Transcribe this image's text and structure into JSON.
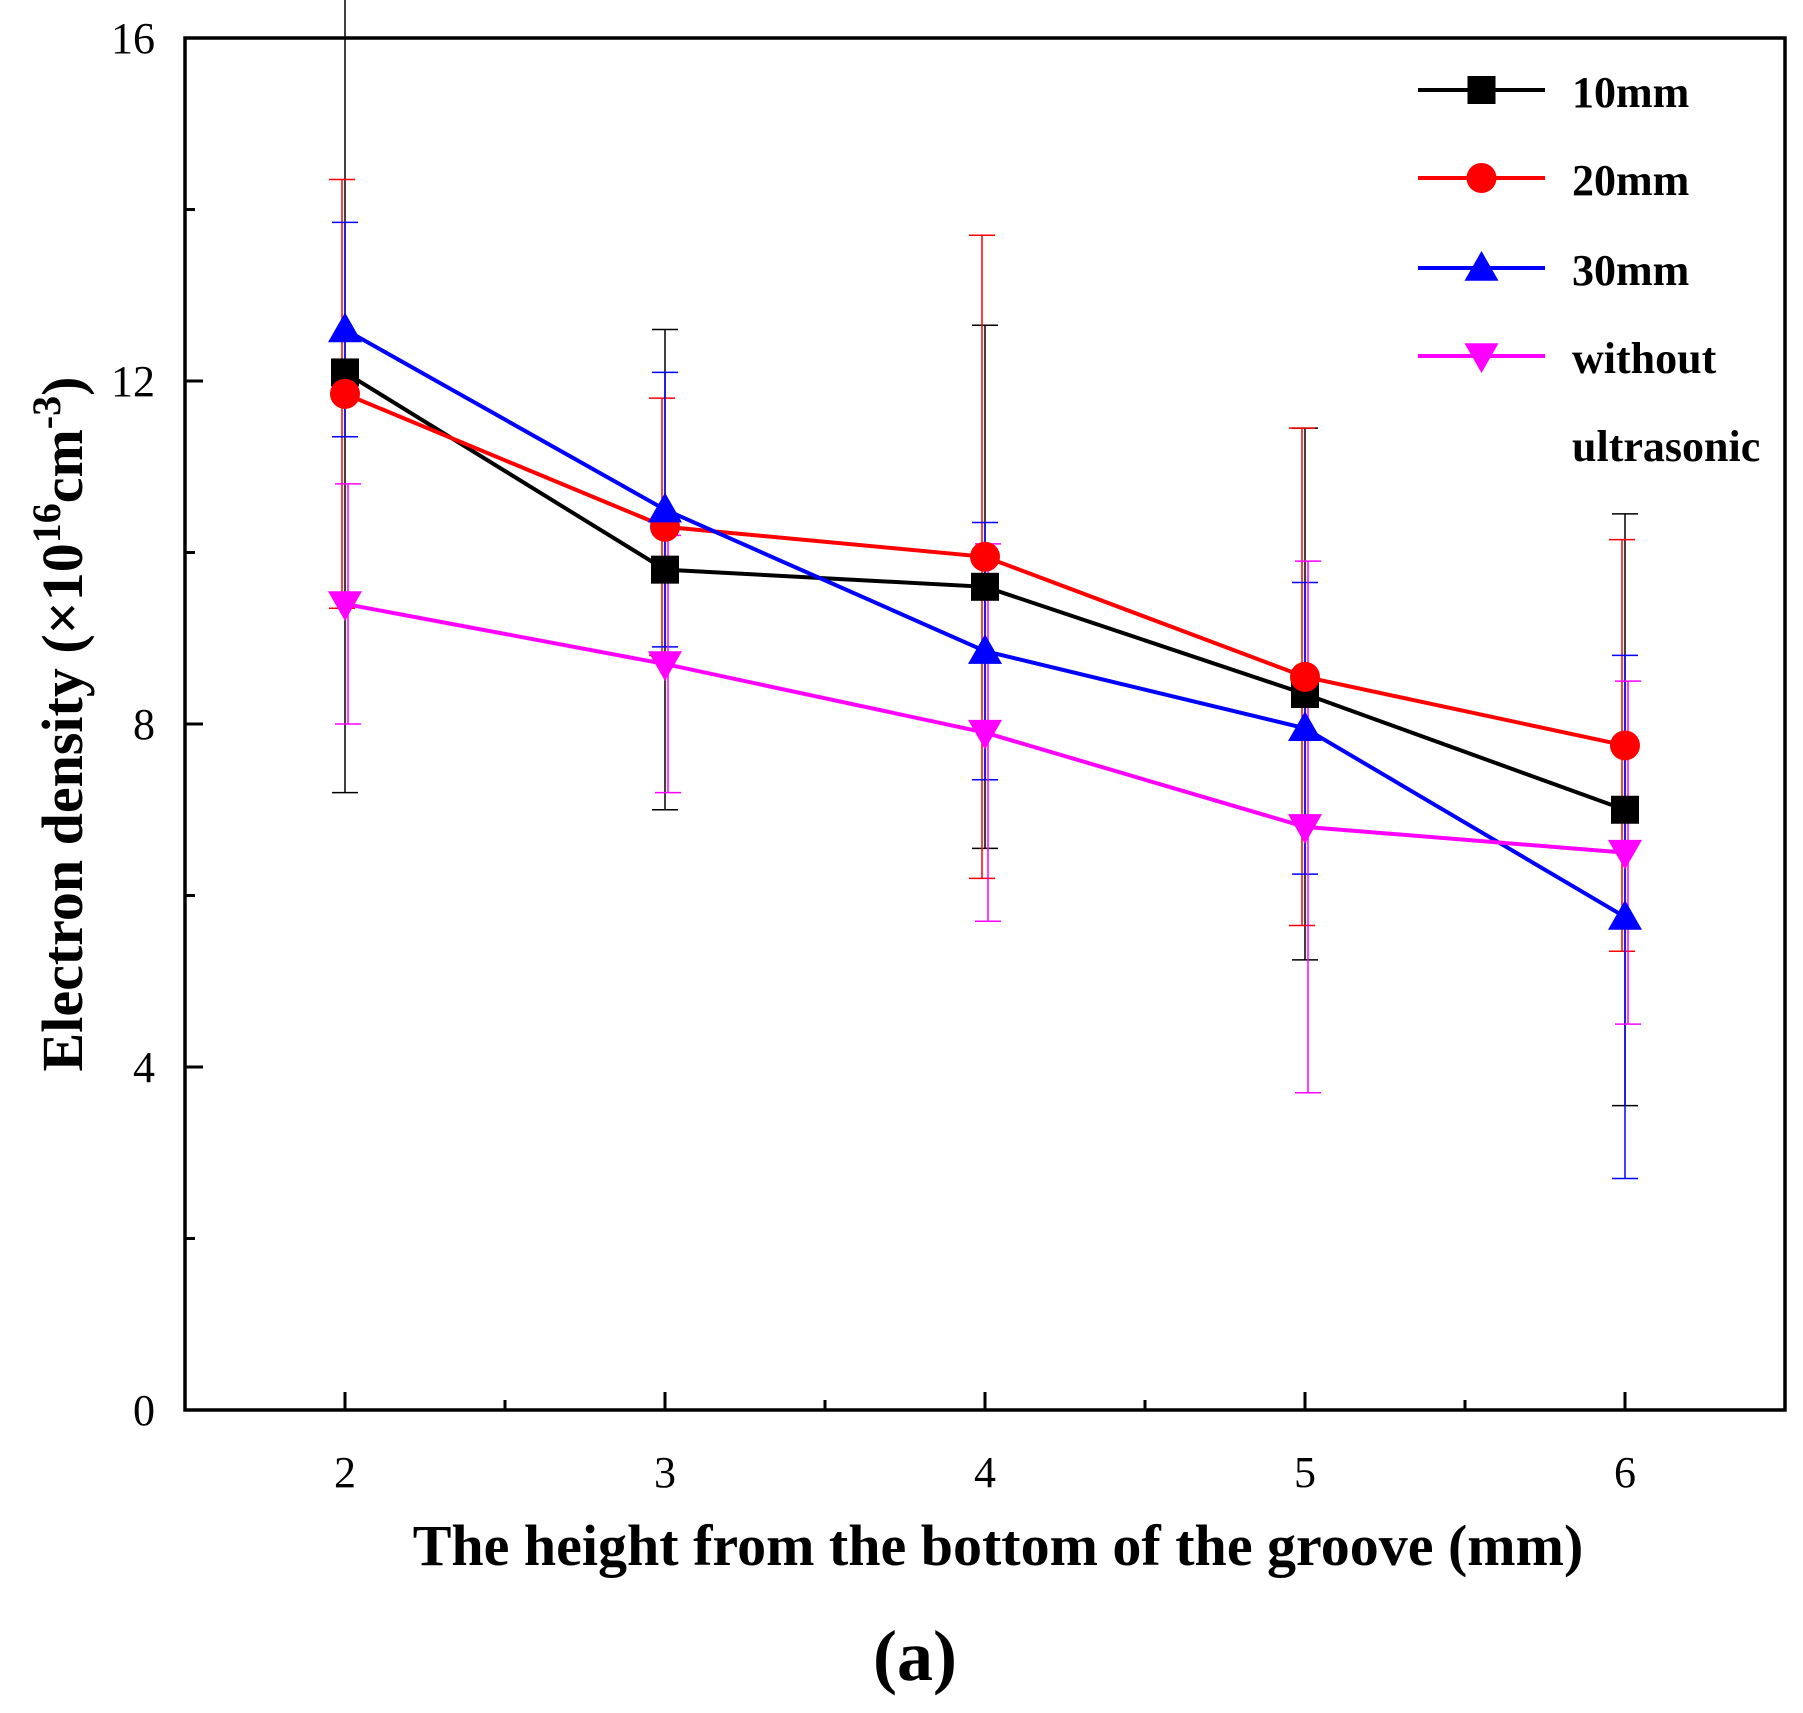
{
  "chart_data": {
    "type": "line",
    "panel_label": "(a)",
    "xlabel": "The height from the bottom of the groove (mm)",
    "ylabel": {
      "prefix": "Electron density (×10",
      "exp1": "16",
      "mid": "cm",
      "exp2": "-3",
      "suffix": ")"
    },
    "xlim": [
      1.5,
      6.5
    ],
    "ylim": [
      0,
      16
    ],
    "x": [
      2,
      3,
      4,
      5,
      6
    ],
    "xticks": [
      2,
      3,
      4,
      5,
      6
    ],
    "yticks": [
      0,
      4,
      8,
      12,
      16
    ],
    "grid": false,
    "legend_position": "top-right",
    "series": [
      {
        "name": "10mm",
        "color": "#000000",
        "marker": "square",
        "values": [
          12.1,
          9.8,
          9.6,
          8.35,
          7.0
        ],
        "error": [
          4.9,
          2.8,
          3.05,
          3.1,
          3.45
        ]
      },
      {
        "name": "20mm",
        "color": "#ff0000",
        "marker": "circle",
        "values": [
          11.85,
          10.3,
          9.95,
          8.55,
          7.75
        ],
        "error": [
          2.5,
          1.5,
          3.75,
          2.9,
          2.4
        ]
      },
      {
        "name": "30mm",
        "color": "#0000ff",
        "marker": "triangle-up",
        "values": [
          12.6,
          10.5,
          8.85,
          7.95,
          5.75
        ],
        "error": [
          1.25,
          1.6,
          1.5,
          1.7,
          3.05
        ]
      },
      {
        "name": "without ultrasonic",
        "name_lines": [
          "without",
          "ultrasonic"
        ],
        "color": "#ff00ff",
        "marker": "triangle-down",
        "values": [
          9.4,
          8.7,
          7.9,
          6.8,
          6.5
        ],
        "error": [
          1.4,
          1.5,
          2.2,
          3.1,
          2.0
        ]
      }
    ]
  }
}
